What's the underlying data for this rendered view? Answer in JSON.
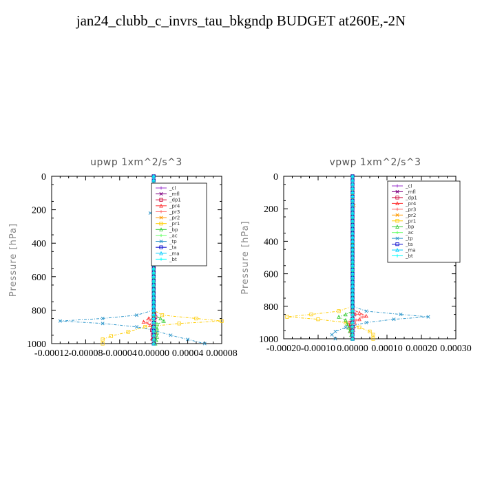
{
  "figure": {
    "title": "jan24_clubb_c_invrs_tau_bkgndp  BUDGET at260E,-2N"
  },
  "chart_data": [
    {
      "type": "line",
      "title": "upwp   1xm^2/s^3",
      "ylabel": "Pressure [hPa]",
      "xlabel": "",
      "xlim": [
        -0.00012,
        8e-05
      ],
      "ylim": [
        1000,
        0
      ],
      "y_inverted": true,
      "grid": false,
      "legend_position": "top-right",
      "xticks": [
        -0.00012,
        -8e-05,
        -4e-05,
        0.0,
        4e-05,
        8e-05
      ],
      "xtick_labels": [
        "-0.00012",
        "-0.00008",
        "-0.00004",
        "0.00000",
        "0.00004",
        "0.00008"
      ],
      "yticks": [
        0,
        200,
        400,
        600,
        800,
        1000
      ],
      "ytick_labels": [
        "0",
        "200",
        "400",
        "600",
        "800",
        "1000"
      ],
      "series": [
        {
          "name": "_cl",
          "color": "#9933cc",
          "points": [
            [
              0,
              0
            ],
            [
              0,
              200
            ],
            [
              0,
              400
            ],
            [
              0,
              600
            ],
            [
              0,
              800
            ],
            [
              0,
              1000
            ]
          ]
        },
        {
          "name": "_mfl",
          "color": "#800080",
          "points": [
            [
              0,
              0
            ],
            [
              0,
              200
            ],
            [
              0,
              400
            ],
            [
              0,
              600
            ],
            [
              0,
              800
            ],
            [
              0,
              1000
            ]
          ]
        },
        {
          "name": "_dp1",
          "color": "#cc0033",
          "points": [
            [
              0,
              0
            ],
            [
              0,
              800
            ],
            [
              2e-06,
              840
            ],
            [
              0,
              880
            ],
            [
              -2e-06,
              920
            ],
            [
              0,
              1000
            ]
          ]
        },
        {
          "name": "_pr4",
          "color": "#ff3333",
          "points": [
            [
              0,
              0
            ],
            [
              0,
              820
            ],
            [
              -6e-06,
              850
            ],
            [
              -1.2e-05,
              870
            ],
            [
              -4e-06,
              890
            ],
            [
              2e-06,
              930
            ],
            [
              -2e-06,
              970
            ],
            [
              0,
              1000
            ]
          ]
        },
        {
          "name": "_pr3",
          "color": "#ff6666",
          "points": [
            [
              0,
              0
            ],
            [
              0,
              830
            ],
            [
              -4e-06,
              860
            ],
            [
              -8e-06,
              875
            ],
            [
              0,
              900
            ],
            [
              2e-06,
              960
            ],
            [
              0,
              1000
            ]
          ]
        },
        {
          "name": "_pr2",
          "color": "#ff9900",
          "points": [
            [
              0,
              0
            ],
            [
              0,
              160
            ],
            [
              2e-06,
              200
            ],
            [
              4e-06,
              220
            ],
            [
              0,
              260
            ],
            [
              0,
              1000
            ]
          ]
        },
        {
          "name": "_pr1",
          "color": "#ffcc00",
          "points": [
            [
              0,
              0
            ],
            [
              0,
              800
            ],
            [
              1e-05,
              830
            ],
            [
              5e-05,
              850
            ],
            [
              8e-05,
              865
            ],
            [
              3e-05,
              880
            ],
            [
              -1e-05,
              900
            ],
            [
              -3e-05,
              930
            ],
            [
              -5e-05,
              955
            ],
            [
              -6e-05,
              975
            ],
            [
              -6e-05,
              1000
            ]
          ]
        },
        {
          "name": "_bp",
          "color": "#33cc33",
          "points": [
            [
              0,
              0
            ],
            [
              0,
              830
            ],
            [
              8e-06,
              850
            ],
            [
              1.2e-05,
              865
            ],
            [
              4e-06,
              885
            ],
            [
              4e-06,
              960
            ],
            [
              2e-06,
              1000
            ]
          ]
        },
        {
          "name": "_ac",
          "color": "#66ff66",
          "points": [
            [
              0,
              0
            ],
            [
              0,
              860
            ],
            [
              3e-06,
              880
            ],
            [
              0,
              1000
            ]
          ]
        },
        {
          "name": "_tp",
          "color": "#3399cc",
          "points": [
            [
              0,
              0
            ],
            [
              0,
              200
            ],
            [
              -4e-06,
              220
            ],
            [
              0,
              240
            ],
            [
              0,
              800
            ],
            [
              -2e-05,
              830
            ],
            [
              -6e-05,
              850
            ],
            [
              -0.00011,
              865
            ],
            [
              -6e-05,
              880
            ],
            [
              -2e-05,
              900
            ],
            [
              0,
              920
            ],
            [
              2e-05,
              950
            ],
            [
              4e-05,
              975
            ],
            [
              6e-05,
              1000
            ]
          ]
        },
        {
          "name": "_ta",
          "color": "#0000cc",
          "points": [
            [
              0,
              0
            ],
            [
              0,
              1000
            ]
          ]
        },
        {
          "name": "_ma",
          "color": "#00ccff",
          "points": [
            [
              0,
              0
            ],
            [
              0,
              1000
            ]
          ]
        },
        {
          "name": "_bt",
          "color": "#00ffff",
          "points": [
            [
              0,
              0
            ],
            [
              0,
              1000
            ]
          ]
        }
      ]
    },
    {
      "type": "line",
      "title": "vpwp   1xm^2/s^3",
      "ylabel": "Pressure [hPa]",
      "xlabel": "",
      "xlim": [
        -0.0002,
        0.0003
      ],
      "ylim": [
        1000,
        0
      ],
      "y_inverted": true,
      "grid": false,
      "legend_position": "top-right",
      "xticks": [
        -0.0002,
        -0.0001,
        0.0,
        0.0001,
        0.0002,
        0.0003
      ],
      "xtick_labels": [
        "-0.00020",
        "-0.00010",
        "0.00000",
        "0.00010",
        "0.00020",
        "0.00030"
      ],
      "yticks": [
        0,
        200,
        400,
        600,
        800,
        1000
      ],
      "ytick_labels": [
        "0",
        "200",
        "400",
        "600",
        "800",
        "1000"
      ],
      "series": [
        {
          "name": "_cl",
          "color": "#9933cc",
          "points": [
            [
              0,
              0
            ],
            [
              0,
              200
            ],
            [
              0,
              400
            ],
            [
              0,
              600
            ],
            [
              0,
              800
            ],
            [
              0,
              1000
            ]
          ]
        },
        {
          "name": "_mfl",
          "color": "#800080",
          "points": [
            [
              0,
              0
            ],
            [
              0,
              200
            ],
            [
              0,
              400
            ],
            [
              0,
              600
            ],
            [
              0,
              800
            ],
            [
              0,
              1000
            ]
          ]
        },
        {
          "name": "_dp1",
          "color": "#cc0033",
          "points": [
            [
              0,
              0
            ],
            [
              0,
              820
            ],
            [
              5e-06,
              850
            ],
            [
              0,
              880
            ],
            [
              -5e-06,
              920
            ],
            [
              0,
              1000
            ]
          ]
        },
        {
          "name": "_pr4",
          "color": "#ff3333",
          "points": [
            [
              0,
              0
            ],
            [
              0,
              820
            ],
            [
              2e-05,
              840
            ],
            [
              4e-05,
              860
            ],
            [
              2e-05,
              880
            ],
            [
              -1e-05,
              900
            ],
            [
              0,
              1000
            ]
          ]
        },
        {
          "name": "_pr3",
          "color": "#ff6666",
          "points": [
            [
              0,
              0
            ],
            [
              0,
              830
            ],
            [
              1e-05,
              850
            ],
            [
              3e-05,
              865
            ],
            [
              1e-05,
              885
            ],
            [
              0,
              1000
            ]
          ]
        },
        {
          "name": "_pr2",
          "color": "#ff9900",
          "points": [
            [
              0,
              0
            ],
            [
              0,
              160
            ],
            [
              4e-06,
              180
            ],
            [
              0,
              200
            ],
            [
              0,
              1000
            ]
          ]
        },
        {
          "name": "_pr1",
          "color": "#ffcc00",
          "points": [
            [
              0,
              0
            ],
            [
              0,
              800
            ],
            [
              -4e-05,
              830
            ],
            [
              -0.00012,
              850
            ],
            [
              -0.00019,
              865
            ],
            [
              -0.0001,
              880
            ],
            [
              -2e-05,
              900
            ],
            [
              2e-05,
              930
            ],
            [
              5e-05,
              955
            ],
            [
              6e-05,
              975
            ],
            [
              6e-05,
              1000
            ]
          ]
        },
        {
          "name": "_bp",
          "color": "#33cc33",
          "points": [
            [
              0,
              0
            ],
            [
              0,
              830
            ],
            [
              -2e-05,
              850
            ],
            [
              -4e-05,
              865
            ],
            [
              -2e-05,
              885
            ],
            [
              0,
              1000
            ]
          ]
        },
        {
          "name": "_ac",
          "color": "#66ff66",
          "points": [
            [
              0,
              0
            ],
            [
              0,
              860
            ],
            [
              -5e-06,
              880
            ],
            [
              0,
              1000
            ]
          ]
        },
        {
          "name": "_tp",
          "color": "#3399cc",
          "points": [
            [
              0,
              0
            ],
            [
              0,
              800
            ],
            [
              4e-05,
              830
            ],
            [
              0.00014,
              850
            ],
            [
              0.00022,
              865
            ],
            [
              0.00012,
              880
            ],
            [
              4e-05,
              900
            ],
            [
              -2e-05,
              930
            ],
            [
              -5e-05,
              955
            ],
            [
              -6e-05,
              975
            ],
            [
              -5e-05,
              1000
            ]
          ]
        },
        {
          "name": "_ta",
          "color": "#0000cc",
          "points": [
            [
              0,
              0
            ],
            [
              0,
              1000
            ]
          ]
        },
        {
          "name": "_ma",
          "color": "#00ccff",
          "points": [
            [
              0,
              0
            ],
            [
              0,
              1000
            ]
          ]
        },
        {
          "name": "_bt",
          "color": "#00ffff",
          "points": [
            [
              0,
              0
            ],
            [
              0,
              1000
            ]
          ]
        }
      ]
    }
  ]
}
